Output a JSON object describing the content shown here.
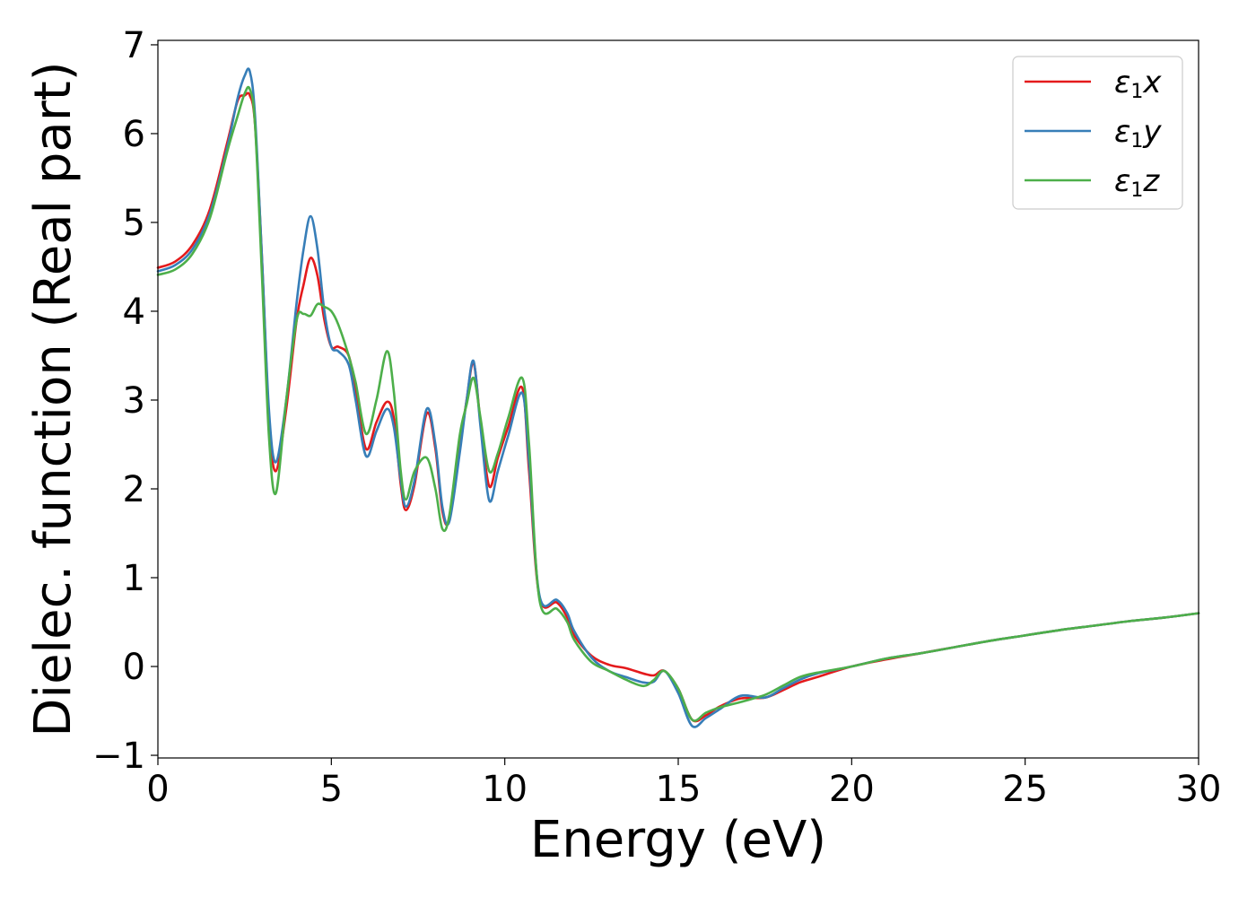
{
  "chart_data": {
    "type": "line",
    "xlabel": "Energy (eV)",
    "ylabel": "Dielec. function (Real part)",
    "xlim": [
      0,
      30
    ],
    "ylim": [
      -1.03,
      7.05
    ],
    "xticks": [
      "0",
      "5",
      "10",
      "15",
      "20",
      "25",
      "30"
    ],
    "yticks": [
      "−1",
      "0",
      "1",
      "2",
      "3",
      "4",
      "5",
      "6",
      "7"
    ],
    "grid": false,
    "legend_position": "top-right",
    "series": [
      {
        "name": "ε1x",
        "legend": {
          "base": "ε",
          "sub": "1",
          "var": "x"
        },
        "color": "#e41a1c",
        "x": [
          0,
          0.5,
          1.0,
          1.5,
          2.0,
          2.3,
          2.5,
          2.65,
          2.8,
          3.0,
          3.2,
          3.4,
          3.7,
          4.0,
          4.2,
          4.4,
          4.6,
          4.8,
          5.0,
          5.2,
          5.5,
          5.7,
          6.0,
          6.3,
          6.6,
          6.8,
          7.0,
          7.15,
          7.4,
          7.75,
          8.0,
          8.2,
          8.4,
          8.7,
          8.9,
          9.1,
          9.3,
          9.55,
          9.8,
          10.1,
          10.5,
          10.7,
          11.0,
          11.5,
          11.8,
          12.0,
          12.5,
          13.0,
          13.5,
          14.0,
          14.3,
          14.6,
          15.0,
          15.4,
          15.8,
          16.2,
          16.8,
          17.5,
          18.0,
          18.5,
          19.0,
          20.0,
          21.0,
          22.0,
          23.0,
          24.0,
          25.0,
          26.0,
          27.0,
          28.0,
          29.0,
          30.0
        ],
        "y": [
          4.49,
          4.56,
          4.75,
          5.15,
          5.9,
          6.37,
          6.43,
          6.43,
          6.1,
          4.6,
          2.8,
          2.2,
          2.9,
          3.9,
          4.3,
          4.6,
          4.4,
          3.9,
          3.6,
          3.6,
          3.5,
          3.1,
          2.45,
          2.75,
          2.98,
          2.8,
          2.05,
          1.76,
          2.05,
          2.85,
          2.45,
          1.75,
          1.65,
          2.45,
          3.0,
          3.42,
          2.75,
          2.03,
          2.35,
          2.7,
          3.14,
          2.2,
          0.78,
          0.72,
          0.55,
          0.35,
          0.12,
          0.02,
          -0.02,
          -0.08,
          -0.1,
          -0.05,
          -0.25,
          -0.6,
          -0.55,
          -0.45,
          -0.36,
          -0.35,
          -0.27,
          -0.18,
          -0.12,
          0.0,
          0.08,
          0.15,
          0.22,
          0.29,
          0.35,
          0.41,
          0.46,
          0.51,
          0.55,
          0.6
        ]
      },
      {
        "name": "ε1y",
        "legend": {
          "base": "ε",
          "sub": "1",
          "var": "y"
        },
        "color": "#377eb8",
        "x": [
          0,
          0.5,
          1.0,
          1.5,
          2.0,
          2.3,
          2.5,
          2.65,
          2.8,
          3.0,
          3.2,
          3.4,
          3.7,
          4.0,
          4.2,
          4.4,
          4.6,
          4.8,
          5.0,
          5.2,
          5.5,
          5.7,
          6.0,
          6.3,
          6.6,
          6.8,
          7.0,
          7.15,
          7.4,
          7.75,
          8.0,
          8.2,
          8.4,
          8.7,
          8.9,
          9.1,
          9.3,
          9.55,
          9.8,
          10.1,
          10.5,
          10.7,
          11.0,
          11.5,
          11.8,
          12.0,
          12.5,
          13.0,
          13.5,
          14.0,
          14.3,
          14.6,
          15.0,
          15.4,
          15.8,
          16.2,
          16.8,
          17.5,
          18.0,
          18.5,
          19.0,
          20.0,
          21.0,
          22.0,
          23.0,
          24.0,
          25.0,
          26.0,
          27.0,
          28.0,
          29.0,
          30.0
        ],
        "y": [
          4.45,
          4.52,
          4.7,
          5.1,
          5.85,
          6.4,
          6.65,
          6.7,
          6.2,
          4.6,
          2.9,
          2.3,
          3.0,
          4.1,
          4.7,
          5.07,
          4.7,
          4.0,
          3.6,
          3.55,
          3.4,
          3.0,
          2.37,
          2.65,
          2.9,
          2.7,
          2.1,
          1.8,
          2.1,
          2.9,
          2.5,
          1.8,
          1.63,
          2.4,
          3.0,
          3.44,
          2.7,
          1.87,
          2.2,
          2.6,
          3.08,
          2.3,
          0.8,
          0.75,
          0.6,
          0.4,
          0.1,
          -0.05,
          -0.12,
          -0.18,
          -0.17,
          -0.05,
          -0.3,
          -0.67,
          -0.58,
          -0.48,
          -0.33,
          -0.35,
          -0.25,
          -0.15,
          -0.08,
          0.0,
          0.09,
          0.15,
          0.22,
          0.29,
          0.35,
          0.41,
          0.46,
          0.51,
          0.55,
          0.6
        ]
      },
      {
        "name": "ε1z",
        "legend": {
          "base": "ε",
          "sub": "1",
          "var": "z"
        },
        "color": "#4daf4a",
        "x": [
          0,
          0.5,
          1.0,
          1.5,
          2.0,
          2.3,
          2.5,
          2.65,
          2.8,
          3.0,
          3.2,
          3.4,
          3.7,
          4.0,
          4.2,
          4.4,
          4.6,
          4.8,
          5.0,
          5.2,
          5.5,
          5.7,
          6.0,
          6.3,
          6.6,
          6.8,
          7.0,
          7.15,
          7.4,
          7.75,
          8.0,
          8.2,
          8.4,
          8.7,
          8.9,
          9.1,
          9.3,
          9.55,
          9.8,
          10.1,
          10.5,
          10.7,
          11.0,
          11.5,
          11.8,
          12.0,
          12.5,
          13.0,
          13.5,
          14.0,
          14.3,
          14.6,
          15.0,
          15.4,
          15.8,
          16.2,
          16.8,
          17.5,
          18.0,
          18.5,
          19.0,
          20.0,
          21.0,
          22.0,
          23.0,
          24.0,
          25.0,
          26.0,
          27.0,
          28.0,
          29.0,
          30.0
        ],
        "y": [
          4.41,
          4.47,
          4.65,
          5.05,
          5.8,
          6.2,
          6.45,
          6.5,
          6.1,
          4.4,
          2.6,
          1.95,
          3.0,
          3.9,
          3.97,
          3.95,
          4.08,
          4.05,
          4.0,
          3.85,
          3.5,
          3.2,
          2.62,
          3.0,
          3.55,
          3.1,
          2.2,
          1.88,
          2.2,
          2.35,
          2.0,
          1.55,
          1.7,
          2.6,
          2.95,
          3.25,
          2.8,
          2.2,
          2.4,
          2.8,
          3.25,
          2.5,
          0.75,
          0.65,
          0.5,
          0.3,
          0.05,
          -0.05,
          -0.15,
          -0.22,
          -0.15,
          -0.05,
          -0.25,
          -0.6,
          -0.52,
          -0.46,
          -0.4,
          -0.32,
          -0.22,
          -0.12,
          -0.07,
          0.0,
          0.09,
          0.15,
          0.22,
          0.29,
          0.35,
          0.41,
          0.46,
          0.51,
          0.55,
          0.6
        ]
      }
    ]
  }
}
